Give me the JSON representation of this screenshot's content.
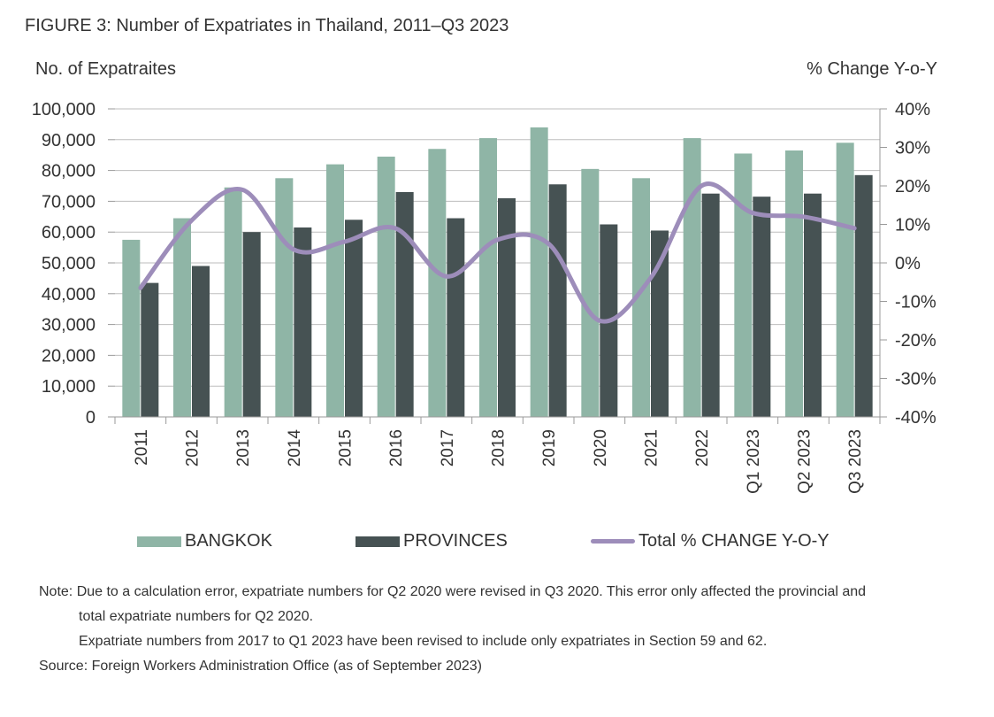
{
  "title": "FIGURE 3: Number of Expatriates in Thailand, 2011–Q3 2023",
  "chart_data": {
    "type": "bar",
    "y_left_label": "No. of Expatraites",
    "y_right_label": "% Change Y-o-Y",
    "categories": [
      "2011",
      "2012",
      "2013",
      "2014",
      "2015",
      "2016",
      "2017",
      "2018",
      "2019",
      "2020",
      "2021",
      "2022",
      "Q1 2023",
      "Q2 2023",
      "Q3 2023"
    ],
    "ylim_left": [
      0,
      100000
    ],
    "ylim_right": [
      -40,
      40
    ],
    "y_left_ticks": [
      "0",
      "10,000",
      "20,000",
      "30,000",
      "40,000",
      "50,000",
      "60,000",
      "70,000",
      "80,000",
      "90,000",
      "100,000"
    ],
    "y_right_ticks": [
      "-40%",
      "-30%",
      "-20%",
      "-10%",
      "0%",
      "10%",
      "20%",
      "30%",
      "40%"
    ],
    "series": [
      {
        "name": "BANGKOK",
        "type": "bar",
        "color": "#8fb5a6",
        "values": [
          57500,
          64500,
          74500,
          77500,
          82000,
          84500,
          87000,
          90500,
          94000,
          80500,
          77500,
          90500,
          85500,
          86500,
          89000
        ]
      },
      {
        "name": "PROVINCES",
        "type": "bar",
        "color": "#465253",
        "values": [
          43500,
          49000,
          60000,
          61500,
          64000,
          73000,
          64500,
          71000,
          75500,
          62500,
          60500,
          72500,
          71500,
          72500,
          78500
        ]
      },
      {
        "name": "Total % CHANGE Y-O-Y",
        "type": "line",
        "axis": "right",
        "color": "#9d8dba",
        "values": [
          -6.5,
          11,
          19,
          3.5,
          5.5,
          9,
          -3.5,
          6,
          5,
          -15,
          -4,
          20,
          13,
          12,
          9
        ]
      }
    ],
    "grid": "horizontal"
  },
  "legend": {
    "bangkok": "BANGKOK",
    "provinces": "PROVINCES",
    "total": "Total % CHANGE Y-O-Y"
  },
  "notes": {
    "line1": "Note: Due to a calculation error, expatriate numbers for Q2 2020 were revised in Q3 2020. This error only affected the provincial and",
    "line2": "total expatriate numbers for Q2 2020.",
    "line3": "Expatriate numbers from 2017 to Q1 2023 have been revised to include only expatriates in Section 59 and 62.",
    "source": "Source: Foreign Workers Administration Office (as of September 2023)"
  }
}
